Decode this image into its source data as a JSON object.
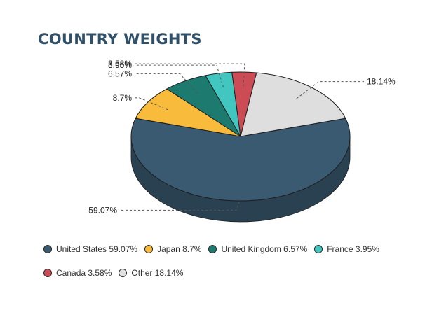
{
  "title": "COUNTRY WEIGHTS",
  "chart_data": {
    "type": "pie",
    "variant": "3d",
    "title": "COUNTRY WEIGHTS",
    "categories": [
      "United States",
      "Japan",
      "United Kingdom",
      "France",
      "Canada",
      "Other"
    ],
    "values": [
      59.07,
      8.7,
      6.57,
      3.95,
      3.58,
      18.14
    ],
    "data_labels": [
      "59.07%",
      "8.7%",
      "6.57%",
      "3.95%",
      "3.58%",
      "18.14%"
    ],
    "legend": [
      "United States 59.07%",
      "Japan 8.7%",
      "United Kingdom 6.57%",
      "France 3.95%",
      "Canada 3.58%",
      "Other 18.14%"
    ],
    "colors": [
      "#3a5a72",
      "#f9bb3c",
      "#1d7a6e",
      "#41c6c0",
      "#cc4c55",
      "#dedede"
    ],
    "legend_position": "bottom"
  }
}
